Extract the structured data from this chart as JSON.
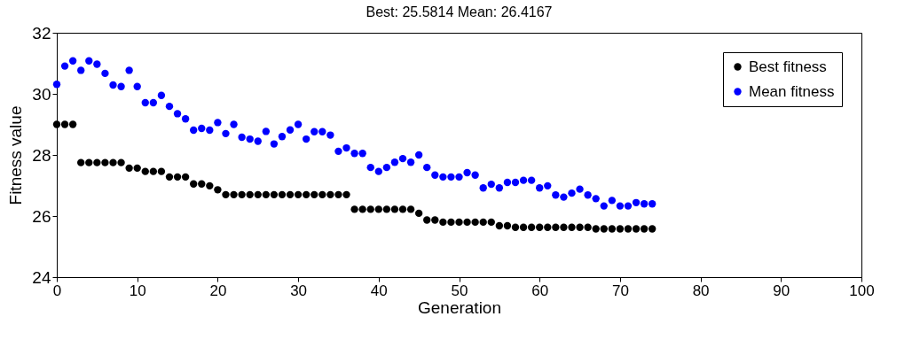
{
  "chart_data": {
    "type": "scatter",
    "title": "Best: 25.5814 Mean: 26.4167",
    "xlabel": "Generation",
    "ylabel": "Fitness value",
    "x": [
      0,
      1,
      2,
      3,
      4,
      5,
      6,
      7,
      8,
      9,
      10,
      11,
      12,
      13,
      14,
      15,
      16,
      17,
      18,
      19,
      20,
      21,
      22,
      23,
      24,
      25,
      26,
      27,
      28,
      29,
      30,
      31,
      32,
      33,
      34,
      35,
      36,
      37,
      38,
      39,
      40,
      41,
      42,
      43,
      44,
      45,
      46,
      47,
      48,
      49,
      50,
      51,
      52,
      53,
      54,
      55,
      56,
      57,
      58,
      59,
      60,
      61,
      62,
      63,
      64,
      65,
      66,
      67,
      68,
      69,
      70,
      71,
      72,
      73,
      74
    ],
    "series": [
      {
        "name": "Best fitness",
        "color": "#000000",
        "values": [
          29.0,
          29.0,
          29.0,
          27.75,
          27.75,
          27.75,
          27.75,
          27.75,
          27.75,
          27.57,
          27.57,
          27.46,
          27.46,
          27.46,
          27.28,
          27.28,
          27.28,
          27.05,
          27.05,
          26.99,
          26.86,
          26.7,
          26.7,
          26.7,
          26.7,
          26.7,
          26.7,
          26.7,
          26.7,
          26.7,
          26.7,
          26.7,
          26.7,
          26.7,
          26.7,
          26.7,
          26.7,
          26.22,
          26.22,
          26.22,
          26.22,
          26.22,
          26.22,
          26.22,
          26.22,
          26.09,
          25.87,
          25.87,
          25.8,
          25.8,
          25.8,
          25.8,
          25.8,
          25.8,
          25.8,
          25.68,
          25.68,
          25.63,
          25.63,
          25.63,
          25.63,
          25.63,
          25.63,
          25.63,
          25.63,
          25.63,
          25.63,
          25.58,
          25.58,
          25.58,
          25.58,
          25.58,
          25.58,
          25.58,
          25.58
        ]
      },
      {
        "name": "Mean fitness",
        "color": "#0000ff",
        "values": [
          30.31,
          30.91,
          31.08,
          30.77,
          31.08,
          30.97,
          30.67,
          30.29,
          30.24,
          30.77,
          30.24,
          29.71,
          29.71,
          29.95,
          29.59,
          29.35,
          29.18,
          28.81,
          28.87,
          28.81,
          29.06,
          28.7,
          29.0,
          28.58,
          28.52,
          28.45,
          28.77,
          28.36,
          28.6,
          28.82,
          29.0,
          28.52,
          28.76,
          28.76,
          28.65,
          28.12,
          28.23,
          28.05,
          28.05,
          27.59,
          27.46,
          27.59,
          27.76,
          27.88,
          27.76,
          28.0,
          27.59,
          27.34,
          27.28,
          27.28,
          27.28,
          27.42,
          27.34,
          26.92,
          27.04,
          26.92,
          27.1,
          27.1,
          27.17,
          27.17,
          26.92,
          26.99,
          26.69,
          26.62,
          26.75,
          26.88,
          26.69,
          26.57,
          26.33,
          26.51,
          26.33,
          26.33,
          26.44,
          26.4,
          26.4
        ]
      }
    ],
    "xlim": [
      0,
      100
    ],
    "xticks": [
      0,
      10,
      20,
      30,
      40,
      50,
      60,
      70,
      80,
      90,
      100
    ],
    "ylim": [
      24,
      32
    ],
    "yticks": [
      24,
      26,
      28,
      30,
      32
    ],
    "legend": "top right",
    "marker": "circle",
    "grid": false
  }
}
